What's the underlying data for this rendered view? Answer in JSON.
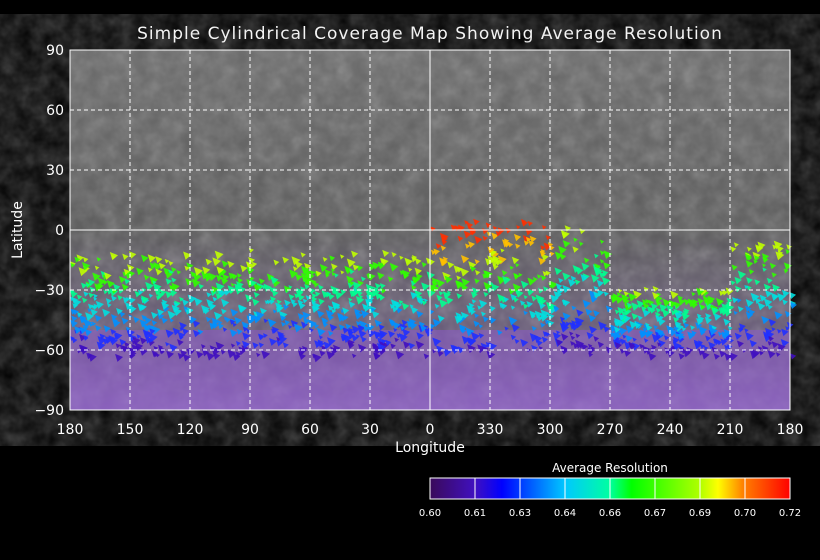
{
  "chart_data": {
    "type": "map",
    "title": "Simple Cylindrical Coverage Map Showing Average Resolution",
    "xlabel": "Longitude",
    "ylabel": "Latitude",
    "x_tick_labels": [
      "180",
      "150",
      "120",
      "90",
      "60",
      "30",
      "0",
      "330",
      "300",
      "270",
      "240",
      "210",
      "180"
    ],
    "y_tick_labels": [
      "90",
      "60",
      "30",
      "0",
      "−30",
      "−60",
      "−90"
    ],
    "ylim": [
      -90,
      90
    ],
    "grid": true,
    "colorbar": {
      "title": "Average Resolution",
      "tick_labels": [
        "0.60",
        "0.61",
        "0.63",
        "0.64",
        "0.66",
        "0.67",
        "0.69",
        "0.70",
        "0.72"
      ],
      "range": [
        0.6,
        0.72
      ],
      "colors": [
        "#3a0a5a",
        "#0000ff",
        "#00c8ff",
        "#00ffc0",
        "#00ff00",
        "#b0ff00",
        "#ffff00",
        "#ff8000",
        "#ff0000"
      ]
    }
  }
}
